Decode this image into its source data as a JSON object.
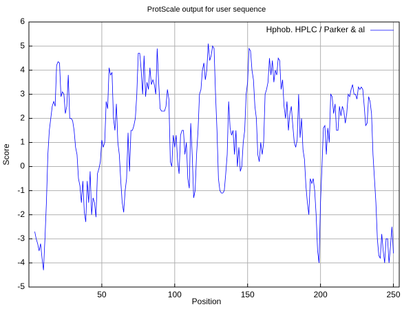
{
  "chart_data": {
    "type": "line",
    "title": "ProtScale output for user sequence",
    "x_label": "Position",
    "y_label": "Score",
    "xlim": [
      0,
      254
    ],
    "ylim": [
      -5,
      6
    ],
    "xticks": [
      50,
      100,
      150,
      200,
      250
    ],
    "yticks": [
      -5,
      -4,
      -3,
      -2,
      -1,
      0,
      1,
      2,
      3,
      4,
      5,
      6
    ],
    "grid": true,
    "legend_position": "top-right",
    "x": [
      4,
      5,
      6,
      7,
      8,
      9,
      10,
      11,
      12,
      13,
      14,
      15,
      16,
      17,
      18,
      19,
      20,
      21,
      22,
      23,
      24,
      25,
      26,
      27,
      28,
      29,
      30,
      31,
      32,
      33,
      34,
      35,
      36,
      37,
      38,
      39,
      40,
      41,
      42,
      43,
      44,
      45,
      46,
      47,
      48,
      49,
      50,
      51,
      52,
      53,
      54,
      55,
      56,
      57,
      58,
      59,
      60,
      61,
      62,
      63,
      64,
      65,
      66,
      67,
      68,
      69,
      70,
      71,
      72,
      73,
      74,
      75,
      76,
      77,
      78,
      79,
      80,
      81,
      82,
      83,
      84,
      85,
      86,
      87,
      88,
      89,
      90,
      91,
      92,
      93,
      94,
      95,
      96,
      97,
      98,
      99,
      100,
      101,
      102,
      103,
      104,
      105,
      106,
      107,
      108,
      109,
      110,
      111,
      112,
      113,
      114,
      115,
      116,
      117,
      118,
      119,
      120,
      121,
      122,
      123,
      124,
      125,
      126,
      127,
      128,
      129,
      130,
      131,
      132,
      133,
      134,
      135,
      136,
      137,
      138,
      139,
      140,
      141,
      142,
      143,
      144,
      145,
      146,
      147,
      148,
      149,
      150,
      151,
      152,
      153,
      154,
      155,
      156,
      157,
      158,
      159,
      160,
      161,
      162,
      163,
      164,
      165,
      166,
      167,
      168,
      169,
      170,
      171,
      172,
      173,
      174,
      175,
      176,
      177,
      178,
      179,
      180,
      181,
      182,
      183,
      184,
      185,
      186,
      187,
      188,
      189,
      190,
      191,
      192,
      193,
      194,
      195,
      196,
      197,
      198,
      199,
      200,
      201,
      202,
      203,
      204,
      205,
      206,
      207,
      208,
      209,
      210,
      211,
      212,
      213,
      214,
      215,
      216,
      217,
      218,
      219,
      220,
      221,
      222,
      223,
      224,
      225,
      226,
      227,
      228,
      229,
      230,
      231,
      232,
      233,
      234,
      235,
      236,
      237,
      238,
      239,
      240,
      241,
      242,
      243,
      244,
      245,
      246,
      247,
      248,
      249,
      250
    ],
    "series": [
      {
        "name": "Hphob. HPLC / Parker & al",
        "color": "#0000ff",
        "values": [
          -2.7,
          -3.0,
          -3.2,
          -3.5,
          -3.2,
          -3.8,
          -4.3,
          -3.0,
          -1.5,
          0.5,
          1.5,
          2.0,
          2.5,
          2.7,
          2.5,
          4.2,
          4.35,
          4.3,
          2.9,
          3.1,
          3.0,
          2.2,
          2.5,
          3.8,
          2.0,
          2.0,
          1.9,
          1.5,
          0.8,
          0.5,
          -0.5,
          -0.8,
          -1.5,
          -0.6,
          -1.9,
          -2.3,
          -0.6,
          -1.5,
          -0.2,
          -2.0,
          -1.3,
          -1.5,
          -2.1,
          -0.3,
          -0.1,
          0.2,
          1.1,
          0.8,
          1.0,
          2.7,
          2.4,
          4.1,
          3.8,
          3.9,
          2.0,
          1.5,
          2.6,
          1.0,
          0.5,
          -0.6,
          -1.5,
          -1.9,
          -1.0,
          -0.5,
          1.4,
          -0.2,
          1.5,
          1.5,
          1.7,
          2.0,
          3.0,
          4.7,
          4.7,
          4.0,
          3.0,
          4.6,
          2.9,
          3.5,
          3.2,
          4.1,
          3.4,
          3.6,
          3.4,
          3.0,
          4.9,
          3.5,
          2.4,
          2.3,
          2.3,
          2.3,
          2.5,
          3.2,
          2.8,
          0.2,
          0.0,
          1.3,
          0.8,
          1.3,
          0.2,
          -0.3,
          1.3,
          1.5,
          1.5,
          0.5,
          1.0,
          -0.5,
          -0.9,
          1.8,
          0.5,
          -1.3,
          -1.0,
          0.5,
          1.5,
          3.0,
          3.2,
          4.0,
          4.3,
          3.6,
          4.0,
          5.1,
          4.4,
          4.6,
          5.0,
          4.9,
          3.0,
          1.5,
          -0.5,
          -1.0,
          -1.1,
          -1.1,
          -1.0,
          -0.3,
          0.5,
          2.7,
          1.6,
          1.3,
          1.5,
          0.5,
          1.5,
          0.0,
          0.8,
          -0.2,
          0.0,
          1.0,
          1.5,
          3.0,
          3.5,
          4.9,
          4.8,
          4.0,
          3.6,
          2.5,
          2.0,
          0.5,
          0.2,
          1.0,
          0.5,
          1.0,
          3.0,
          3.2,
          3.5,
          4.5,
          3.8,
          4.4,
          3.5,
          4.0,
          3.8,
          4.5,
          4.4,
          3.2,
          3.6,
          2.5,
          2.0,
          2.7,
          1.5,
          2.2,
          2.5,
          1.7,
          1.0,
          0.8,
          1.1,
          3.0,
          1.2,
          2.0,
          0.7,
          0.3,
          -0.8,
          -1.5,
          -2.0,
          -0.5,
          -0.7,
          -0.5,
          -1.0,
          -2.0,
          -3.5,
          -4.0,
          -1.5,
          0.0,
          1.6,
          1.7,
          0.5,
          1.6,
          1.0,
          3.0,
          2.9,
          2.2,
          2.6,
          1.5,
          1.5,
          2.5,
          2.1,
          2.5,
          2.3,
          1.8,
          2.2,
          3.0,
          2.9,
          3.2,
          3.4,
          3.0,
          3.0,
          2.8,
          3.3,
          3.2,
          3.3,
          3.2,
          2.5,
          1.7,
          1.8,
          2.9,
          2.7,
          2.2,
          0.5,
          -0.5,
          -1.5,
          -3.0,
          -3.7,
          -3.8,
          -2.8,
          -3.5,
          -4.0,
          -3.0,
          -3.0,
          -4.0,
          -3.3,
          -2.5,
          -3.6
        ]
      }
    ]
  }
}
